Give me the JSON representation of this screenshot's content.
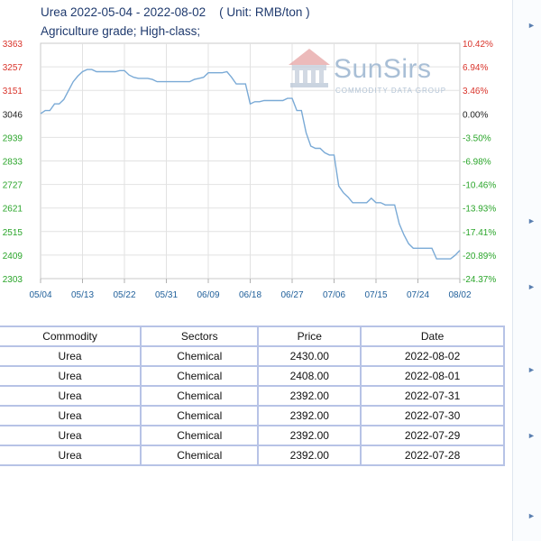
{
  "header": {
    "title": "Urea 2022-05-04 - 2022-08-02",
    "unit": "( Unit: RMB/ton )",
    "subtitle": "Agriculture grade; High-class;"
  },
  "watermark": {
    "brand": "SunSirs",
    "tagline": "COMMODITY DATA GROUP"
  },
  "chart_data": {
    "type": "line",
    "title": "Urea 2022-05-04 - 2022-08-02",
    "x_tick_labels": [
      "05/04",
      "05/13",
      "05/22",
      "05/31",
      "06/09",
      "06/18",
      "06/27",
      "07/06",
      "07/15",
      "07/24",
      "08/02"
    ],
    "x_range": [
      "2022-05-04",
      "2022-08-02"
    ],
    "y_tick_labels": [
      "3363",
      "3257",
      "3151",
      "3046",
      "2939",
      "2833",
      "2727",
      "2621",
      "2515",
      "2409",
      "2303"
    ],
    "y2_tick_labels": [
      "10.42%",
      "6.94%",
      "3.46%",
      "0.00%",
      "-3.50%",
      "-6.98%",
      "-10.46%",
      "-13.93%",
      "-17.41%",
      "-20.89%",
      "-24.37%"
    ],
    "ylim": [
      2303,
      3363
    ],
    "grid": true,
    "line_color": "#7aaad6",
    "pos_color": "#d9342b",
    "neg_color": "#2aa52a",
    "series": [
      {
        "x": [
          "2022-05-04",
          "2022-05-05",
          "2022-05-06",
          "2022-05-07",
          "2022-05-08",
          "2022-05-09",
          "2022-05-10",
          "2022-05-11",
          "2022-05-12",
          "2022-05-13",
          "2022-05-14",
          "2022-05-15",
          "2022-05-16",
          "2022-05-17",
          "2022-05-18",
          "2022-05-19",
          "2022-05-20",
          "2022-05-21",
          "2022-05-22",
          "2022-05-23",
          "2022-05-24",
          "2022-05-25",
          "2022-05-26",
          "2022-05-27",
          "2022-05-28",
          "2022-05-29",
          "2022-05-30",
          "2022-05-31",
          "2022-06-01",
          "2022-06-02",
          "2022-06-03",
          "2022-06-04",
          "2022-06-05",
          "2022-06-06",
          "2022-06-07",
          "2022-06-08",
          "2022-06-09",
          "2022-06-10",
          "2022-06-11",
          "2022-06-12",
          "2022-06-13",
          "2022-06-14",
          "2022-06-15",
          "2022-06-16",
          "2022-06-17",
          "2022-06-18",
          "2022-06-19",
          "2022-06-20",
          "2022-06-21",
          "2022-06-22",
          "2022-06-23",
          "2022-06-24",
          "2022-06-25",
          "2022-06-26",
          "2022-06-27",
          "2022-06-28",
          "2022-06-29",
          "2022-06-30",
          "2022-07-01",
          "2022-07-02",
          "2022-07-03",
          "2022-07-04",
          "2022-07-05",
          "2022-07-06",
          "2022-07-07",
          "2022-07-08",
          "2022-07-09",
          "2022-07-10",
          "2022-07-11",
          "2022-07-12",
          "2022-07-13",
          "2022-07-14",
          "2022-07-15",
          "2022-07-16",
          "2022-07-17",
          "2022-07-18",
          "2022-07-19",
          "2022-07-20",
          "2022-07-21",
          "2022-07-22",
          "2022-07-23",
          "2022-07-24",
          "2022-07-25",
          "2022-07-26",
          "2022-07-27",
          "2022-07-28",
          "2022-07-29",
          "2022-07-30",
          "2022-07-31",
          "2022-08-01",
          "2022-08-02"
        ],
        "y": [
          3046,
          3060,
          3060,
          3090,
          3090,
          3110,
          3150,
          3190,
          3215,
          3235,
          3245,
          3245,
          3235,
          3235,
          3235,
          3235,
          3235,
          3240,
          3240,
          3220,
          3210,
          3205,
          3205,
          3205,
          3200,
          3190,
          3190,
          3190,
          3190,
          3190,
          3190,
          3190,
          3190,
          3200,
          3205,
          3210,
          3230,
          3230,
          3230,
          3230,
          3235,
          3210,
          3180,
          3180,
          3180,
          3090,
          3100,
          3100,
          3105,
          3105,
          3105,
          3105,
          3105,
          3115,
          3115,
          3060,
          3060,
          2960,
          2900,
          2890,
          2890,
          2870,
          2860,
          2860,
          2720,
          2690,
          2670,
          2645,
          2645,
          2645,
          2645,
          2665,
          2645,
          2645,
          2635,
          2635,
          2635,
          2550,
          2500,
          2460,
          2440,
          2440,
          2440,
          2440,
          2440,
          2392,
          2392,
          2392,
          2392,
          2408,
          2430
        ]
      }
    ]
  },
  "table": {
    "headers": [
      "Commodity",
      "Sectors",
      "Price",
      "Date"
    ],
    "rows": [
      [
        "Urea",
        "Chemical",
        "2430.00",
        "2022-08-02"
      ],
      [
        "Urea",
        "Chemical",
        "2408.00",
        "2022-08-01"
      ],
      [
        "Urea",
        "Chemical",
        "2392.00",
        "2022-07-31"
      ],
      [
        "Urea",
        "Chemical",
        "2392.00",
        "2022-07-30"
      ],
      [
        "Urea",
        "Chemical",
        "2392.00",
        "2022-07-29"
      ],
      [
        "Urea",
        "Chemical",
        "2392.00",
        "2022-07-28"
      ]
    ]
  },
  "right_panel": {
    "arrow_icon": "chevron-right-icon"
  }
}
